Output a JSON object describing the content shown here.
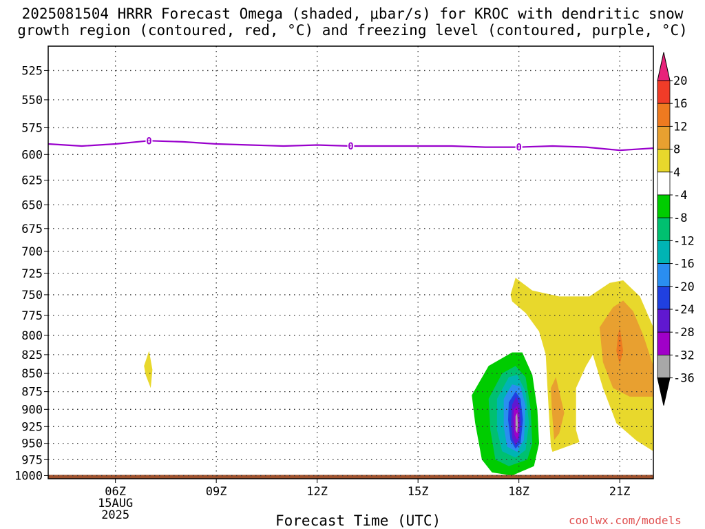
{
  "title": {
    "line1": "2025081504 HRRR Forecast Omega (shaded, μbar/s) for KROC with dendritic snow",
    "line2": "growth region (contoured, red, °C) and freezing level (contoured, purple, °C)"
  },
  "credit": "coolwx.com/models",
  "chart_data": {
    "type": "time-height contour",
    "xlabel": "Forecast Time (UTC)",
    "x_ticks": [
      "06Z",
      "09Z",
      "12Z",
      "15Z",
      "18Z",
      "21Z"
    ],
    "x_tick_hours": [
      6,
      9,
      12,
      15,
      18,
      21
    ],
    "x_range_hours": [
      4,
      22
    ],
    "date_label": [
      "15AUG",
      "2025"
    ],
    "y_ticks": [
      525,
      550,
      575,
      600,
      625,
      650,
      675,
      700,
      725,
      750,
      775,
      800,
      825,
      850,
      875,
      900,
      925,
      950,
      975,
      1000
    ],
    "y_range_mb": [
      505,
      1005
    ],
    "y_scale": "log-pressure (inverted)",
    "grid": true,
    "colorbar": {
      "labels": [
        "20",
        "16",
        "12",
        "8",
        "4",
        "-4",
        "-8",
        "-12",
        "-16",
        "-20",
        "-24",
        "-28",
        "-32",
        "-36"
      ],
      "colors": [
        "#e8227a",
        "#f03c28",
        "#ee7a20",
        "#e8a030",
        "#e8d82c",
        "#ffffff",
        "#00cc00",
        "#00c070",
        "#00b4b4",
        "#2a8ef0",
        "#2040e0",
        "#6018d0",
        "#a000c8",
        "#a8a8a8",
        "#000000"
      ]
    },
    "freezing_level": {
      "color": "#9900cc",
      "label": "0",
      "hours": [
        4,
        5,
        6,
        7,
        8,
        9,
        10,
        11,
        12,
        13,
        14,
        15,
        16,
        17,
        18,
        19,
        20,
        21,
        22
      ],
      "pressure_mb": [
        590,
        592,
        590,
        587,
        588,
        590,
        591,
        592,
        591,
        592,
        592,
        592,
        592,
        593,
        593,
        592,
        593,
        596,
        594
      ],
      "label_hours": [
        7,
        13,
        18
      ]
    },
    "omega_regions": [
      {
        "level": "4",
        "color": "#e8d82c",
        "points": [
          [
            17.75,
            750
          ],
          [
            17.9,
            730
          ],
          [
            18.4,
            745
          ],
          [
            19.2,
            752
          ],
          [
            20.1,
            752
          ],
          [
            20.7,
            736
          ],
          [
            21.1,
            733
          ],
          [
            21.6,
            752
          ],
          [
            22,
            790
          ],
          [
            22,
            962
          ],
          [
            21.5,
            946
          ],
          [
            20.9,
            920
          ],
          [
            20.5,
            870
          ],
          [
            20.2,
            825
          ],
          [
            20.0,
            840
          ],
          [
            19.7,
            870
          ],
          [
            19.7,
            930
          ],
          [
            19.8,
            948
          ],
          [
            19.0,
            963
          ],
          [
            18.95,
            955
          ],
          [
            18.85,
            870
          ],
          [
            18.8,
            825
          ],
          [
            18.6,
            795
          ],
          [
            18.2,
            772
          ],
          [
            17.8,
            758
          ]
        ]
      },
      {
        "level": "4",
        "color": "#e8d82c",
        "points": [
          [
            7.0,
            820
          ],
          [
            7.1,
            845
          ],
          [
            7.05,
            870
          ],
          [
            6.9,
            852
          ],
          [
            6.85,
            840
          ]
        ]
      },
      {
        "level": "8",
        "color": "#e8a030",
        "points": [
          [
            19.1,
            855
          ],
          [
            19.2,
            875
          ],
          [
            19.35,
            905
          ],
          [
            19.2,
            935
          ],
          [
            19.05,
            945
          ],
          [
            18.98,
            900
          ],
          [
            18.95,
            870
          ]
        ]
      },
      {
        "level": "8",
        "color": "#e8a030",
        "points": [
          [
            20.4,
            790
          ],
          [
            20.8,
            765
          ],
          [
            21.1,
            757
          ],
          [
            21.4,
            770
          ],
          [
            21.7,
            800
          ],
          [
            22,
            840
          ],
          [
            22,
            882
          ],
          [
            21.3,
            882
          ],
          [
            20.8,
            870
          ],
          [
            20.5,
            835
          ]
        ]
      },
      {
        "level": "12",
        "color": "#ee7a20",
        "points": [
          [
            21.0,
            790
          ],
          [
            21.1,
            820
          ],
          [
            21.0,
            838
          ],
          [
            20.9,
            820
          ],
          [
            20.95,
            800
          ]
        ]
      },
      {
        "level": "-8",
        "color": "#00cc00",
        "points": [
          [
            16.6,
            880
          ],
          [
            17.1,
            840
          ],
          [
            17.8,
            822
          ],
          [
            18.1,
            822
          ],
          [
            18.4,
            852
          ],
          [
            18.55,
            900
          ],
          [
            18.6,
            950
          ],
          [
            18.45,
            985
          ],
          [
            17.8,
            1000
          ],
          [
            17.2,
            995
          ],
          [
            16.9,
            975
          ],
          [
            16.7,
            920
          ]
        ]
      },
      {
        "level": "-12",
        "color": "#00c070",
        "points": [
          [
            17.1,
            885
          ],
          [
            17.5,
            850
          ],
          [
            17.9,
            840
          ],
          [
            18.2,
            855
          ],
          [
            18.35,
            900
          ],
          [
            18.4,
            950
          ],
          [
            18.25,
            975
          ],
          [
            17.7,
            985
          ],
          [
            17.3,
            975
          ],
          [
            17.15,
            930
          ]
        ]
      },
      {
        "level": "-16",
        "color": "#00b4b4",
        "points": [
          [
            17.35,
            885
          ],
          [
            17.7,
            855
          ],
          [
            17.95,
            852
          ],
          [
            18.2,
            875
          ],
          [
            18.3,
            920
          ],
          [
            18.2,
            960
          ],
          [
            17.9,
            972
          ],
          [
            17.5,
            962
          ],
          [
            17.35,
            930
          ]
        ]
      },
      {
        "level": "-20",
        "color": "#2a8ef0",
        "points": [
          [
            17.55,
            885
          ],
          [
            17.8,
            865
          ],
          [
            18.05,
            868
          ],
          [
            18.2,
            895
          ],
          [
            18.15,
            945
          ],
          [
            17.95,
            963
          ],
          [
            17.65,
            955
          ],
          [
            17.55,
            925
          ]
        ]
      },
      {
        "level": "-24",
        "color": "#2040e0",
        "points": [
          [
            17.7,
            890
          ],
          [
            17.9,
            875
          ],
          [
            18.05,
            885
          ],
          [
            18.12,
            915
          ],
          [
            18.05,
            950
          ],
          [
            17.9,
            958
          ],
          [
            17.75,
            945
          ],
          [
            17.68,
            915
          ]
        ]
      },
      {
        "level": "-28",
        "color": "#6018d0",
        "points": [
          [
            17.8,
            893
          ],
          [
            17.92,
            882
          ],
          [
            18.02,
            893
          ],
          [
            18.05,
            920
          ],
          [
            18.0,
            945
          ],
          [
            17.9,
            953
          ],
          [
            17.8,
            942
          ],
          [
            17.77,
            918
          ]
        ]
      },
      {
        "level": "-32",
        "color": "#a000c8",
        "points": [
          [
            17.85,
            900
          ],
          [
            17.95,
            895
          ],
          [
            18.0,
            910
          ],
          [
            18.0,
            935
          ],
          [
            17.95,
            945
          ],
          [
            17.87,
            937
          ],
          [
            17.84,
            915
          ]
        ]
      },
      {
        "level": "-36",
        "color": "#a8a8a8",
        "points": [
          [
            17.9,
            910
          ],
          [
            17.95,
            905
          ],
          [
            17.97,
            922
          ],
          [
            17.95,
            935
          ],
          [
            17.9,
            930
          ]
        ]
      }
    ],
    "surface_fill_color": "#a0522d"
  }
}
